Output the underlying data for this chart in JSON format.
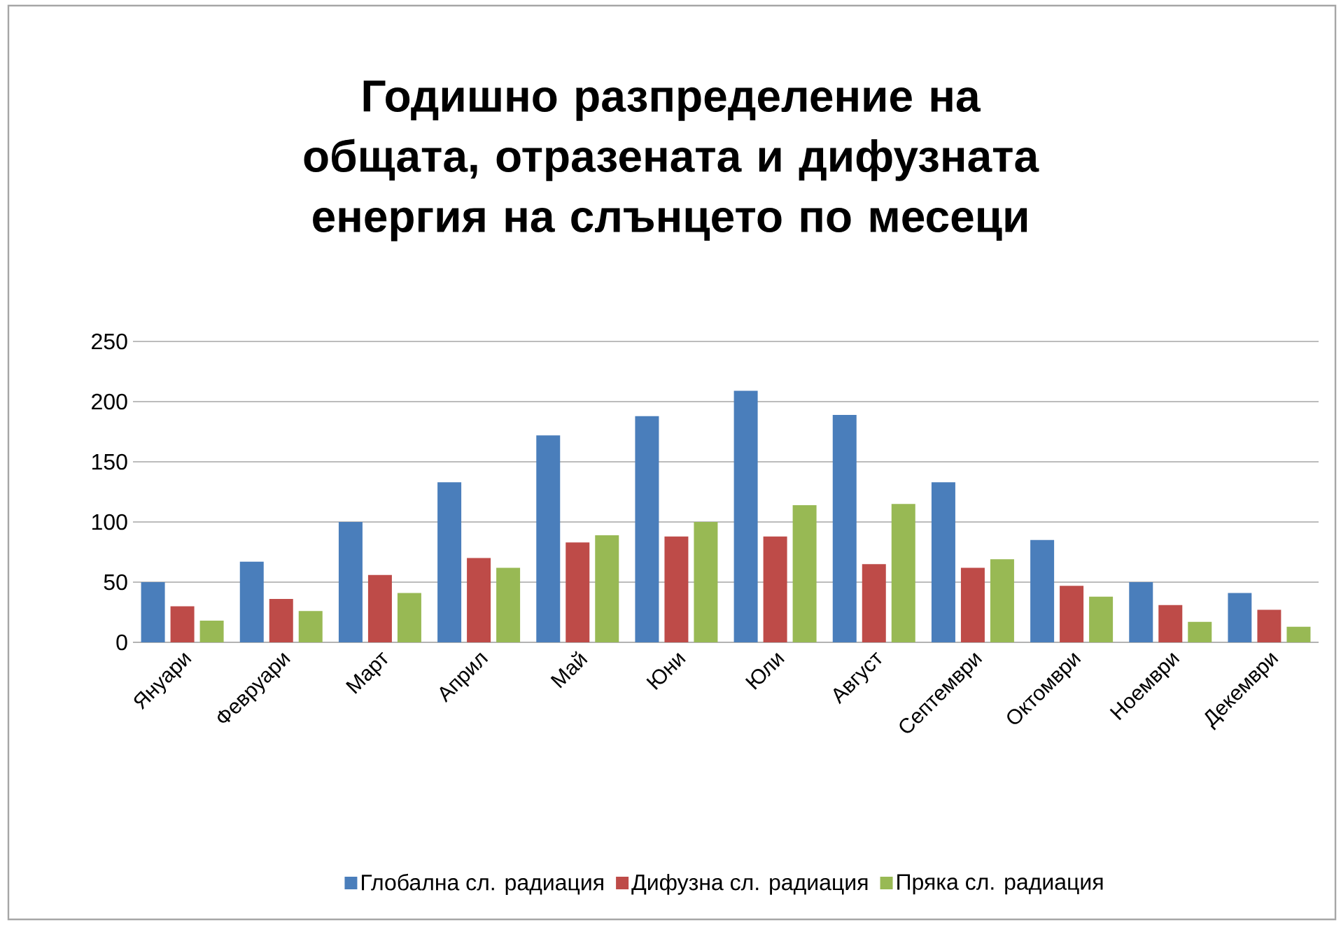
{
  "chart_data": {
    "type": "bar",
    "title": "Годишно разпределение на общата, отразената и дифузната енергия на слънцето по месеци",
    "categories": [
      "Януари",
      "Февруари",
      "Март",
      "Април",
      "Май",
      "Юни",
      "Юли",
      "Август",
      "Септември",
      "Октомври",
      "Ноември",
      "Декември"
    ],
    "series": [
      {
        "name": "Глобална сл. радиация",
        "color": "#4a7ebb",
        "values": [
          50,
          67,
          100,
          133,
          172,
          188,
          209,
          189,
          133,
          85,
          50,
          41
        ]
      },
      {
        "name": "Дифузна сл. радиация",
        "color": "#be4b48",
        "values": [
          30,
          36,
          56,
          70,
          83,
          88,
          88,
          65,
          62,
          47,
          31,
          27
        ]
      },
      {
        "name": "Пряка сл. радиация",
        "color": "#98b954",
        "values": [
          18,
          26,
          41,
          62,
          89,
          100,
          114,
          115,
          69,
          38,
          17,
          13
        ]
      }
    ],
    "ylim": [
      0,
      250
    ],
    "yticks": [
      0,
      50,
      100,
      150,
      200,
      250
    ],
    "grid": "y",
    "legend": "bottom"
  }
}
